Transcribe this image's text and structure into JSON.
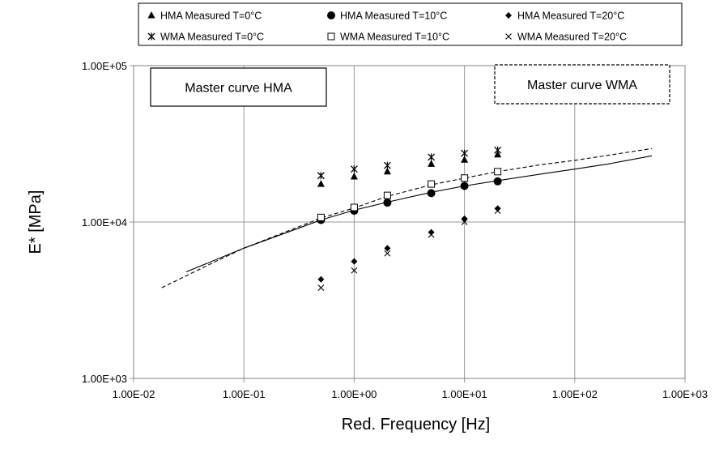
{
  "chart_data": {
    "type": "scatter",
    "title": "",
    "xlabel": "Red. Frequency  [Hz]",
    "ylabel": "E* [MPa]",
    "x_scale": "log",
    "y_scale": "log",
    "xlim": [
      0.01,
      1000
    ],
    "ylim": [
      1000,
      100000
    ],
    "grid": true,
    "legend_position": "top",
    "x_ticks": [
      0.01,
      0.1,
      1,
      10,
      100,
      1000
    ],
    "x_tick_labels": [
      "1.00E-02",
      "1.00E-01",
      "1.00E+00",
      "1.00E+01",
      "1.00E+02",
      "1.00E+03"
    ],
    "y_ticks": [
      1000,
      10000,
      100000
    ],
    "y_tick_labels": [
      "1.00E+03",
      "1.00E+04",
      "1.00E+05"
    ],
    "series": [
      {
        "name": "HMA Measured T=0°C",
        "marker": "triangle",
        "x": [
          0.5,
          1,
          2,
          5,
          10,
          20
        ],
        "y": [
          17500,
          19500,
          21000,
          23500,
          25000,
          27000
        ]
      },
      {
        "name": "HMA Measured T=10°C",
        "marker": "circle",
        "x": [
          0.5,
          1,
          2,
          5,
          10,
          20
        ],
        "y": [
          10300,
          11800,
          13300,
          15300,
          17000,
          18200
        ]
      },
      {
        "name": "HMA Measured T=20°C",
        "marker": "diamond",
        "x": [
          0.5,
          1,
          2,
          5,
          10,
          20
        ],
        "y": [
          4300,
          5600,
          6800,
          8600,
          10500,
          12200
        ]
      },
      {
        "name": "WMA Measured T=0°C",
        "marker": "star",
        "x": [
          0.5,
          1,
          2,
          5,
          10,
          20
        ],
        "y": [
          19800,
          21800,
          23000,
          26000,
          27500,
          28800
        ]
      },
      {
        "name": "WMA Measured T=10°C",
        "marker": "square-open",
        "x": [
          0.5,
          1,
          2,
          5,
          10,
          20
        ],
        "y": [
          10700,
          12400,
          14800,
          17500,
          19100,
          21000
        ]
      },
      {
        "name": "WMA Measured T=20°C",
        "marker": "cross",
        "x": [
          0.5,
          1,
          2,
          5,
          10,
          20
        ],
        "y": [
          3800,
          4900,
          6300,
          8300,
          10000,
          11800
        ]
      }
    ],
    "curves": [
      {
        "label": "Master curve HMA",
        "style": "solid",
        "x": [
          0.03,
          0.1,
          0.5,
          1,
          2,
          5,
          10,
          20,
          50,
          100,
          200,
          500
        ],
        "y": [
          4800,
          6800,
          10300,
          11900,
          13400,
          15500,
          17000,
          18400,
          20300,
          21800,
          23500,
          26500
        ]
      },
      {
        "label": "Master curve WMA",
        "style": "dashed",
        "x": [
          0.018,
          0.05,
          0.1,
          0.5,
          1,
          2,
          5,
          10,
          20,
          50,
          100,
          200,
          500
        ],
        "y": [
          3800,
          5400,
          6800,
          10600,
          12300,
          14600,
          17300,
          19100,
          21000,
          23300,
          24800,
          26700,
          29500
        ]
      }
    ],
    "annotations": [
      {
        "text": "Master curve HMA",
        "border": "solid",
        "position": "top-left"
      },
      {
        "text": "Master curve WMA",
        "border": "dashed",
        "position": "top-right"
      }
    ]
  }
}
